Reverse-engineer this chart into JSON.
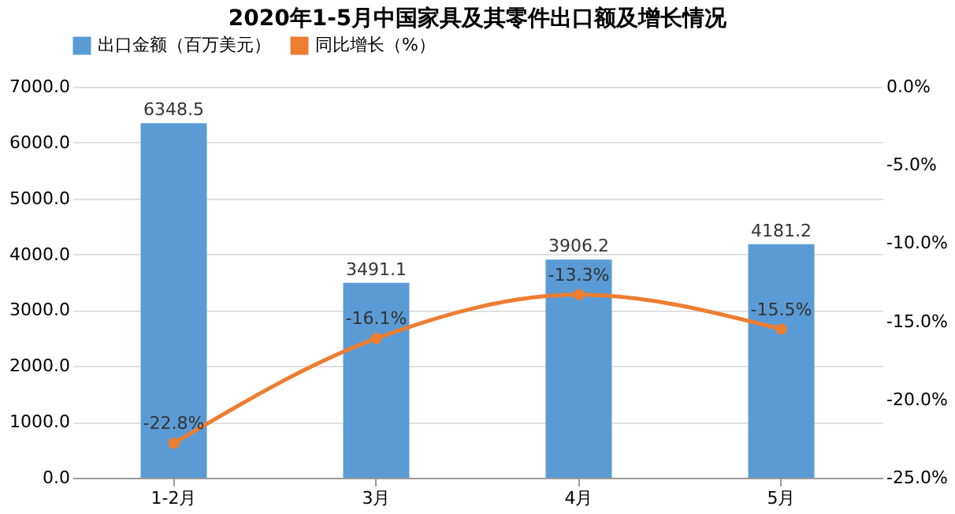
{
  "chart_data": {
    "type": "bar",
    "title": "2020年1-5月中国家具及其零件出口额及增长情况",
    "categories": [
      "1-2月",
      "3月",
      "4月",
      "5月"
    ],
    "series": [
      {
        "name": "出口金额（百万美元）",
        "color": "#5b9bd5",
        "values": [
          6348.5,
          3491.1,
          3906.2,
          4181.2
        ],
        "value_labels": [
          "6348.5",
          "3491.1",
          "3906.2",
          "4181.2"
        ]
      },
      {
        "name": "同比增长（%）",
        "type": "line",
        "axis": "y2",
        "color": "#ed7d31",
        "marker": "circle",
        "values": [
          -22.8,
          -16.1,
          -13.3,
          -15.5
        ],
        "value_labels": [
          "-22.8%",
          "-16.1%",
          "-13.3%",
          "-15.5%"
        ]
      }
    ],
    "ylim": [
      0,
      7000
    ],
    "yticks": [
      {
        "value": 0,
        "label": "0.0"
      },
      {
        "value": 1000,
        "label": "1000.0"
      },
      {
        "value": 2000,
        "label": "2000.0"
      },
      {
        "value": 3000,
        "label": "3000.0"
      },
      {
        "value": 4000,
        "label": "4000.0"
      },
      {
        "value": 5000,
        "label": "5000.0"
      },
      {
        "value": 6000,
        "label": "6000.0"
      },
      {
        "value": 7000,
        "label": "7000.0"
      }
    ],
    "y2lim": [
      -25,
      0
    ],
    "y2ticks": [
      {
        "value": -25,
        "label": "-25.0%"
      },
      {
        "value": -20,
        "label": "-20.0%"
      },
      {
        "value": -15,
        "label": "-15.0%"
      },
      {
        "value": -10,
        "label": "-10.0%"
      },
      {
        "value": -5,
        "label": "-5.0%"
      },
      {
        "value": 0,
        "label": "0.0%"
      }
    ],
    "grid": "y",
    "legend": "top"
  }
}
